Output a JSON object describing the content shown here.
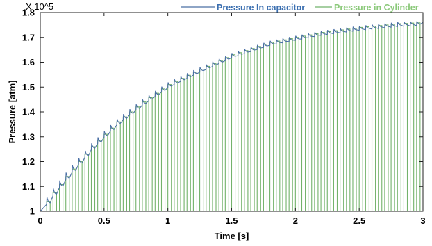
{
  "chart_data": {
    "type": "line",
    "title": "",
    "xlabel": "Time [s]",
    "ylabel": "Pressure [atm]",
    "y_multiplier": "X 10^5",
    "xlim": [
      0,
      3
    ],
    "ylim": [
      1,
      1.8
    ],
    "x_ticks": [
      0,
      0.5,
      1,
      1.5,
      2,
      2.5,
      3
    ],
    "x_tick_labels": [
      "0",
      "0.5",
      "1",
      "1.5",
      "2",
      "2.5",
      "3"
    ],
    "y_ticks": [
      1,
      1.1,
      1.2,
      1.3,
      1.4,
      1.5,
      1.6,
      1.7,
      1.8
    ],
    "y_tick_labels": [
      "1",
      "1.1",
      "1.2",
      "1.3",
      "1.4",
      "1.5",
      "1.6",
      "1.7",
      "1.8"
    ],
    "grid": false,
    "legend_position": "top-right",
    "series": [
      {
        "name": "Pressure In capacitor",
        "color": "#4a6fa5",
        "style": "sawtooth envelope",
        "x": [
          0.05,
          0.1,
          0.2,
          0.3,
          0.4,
          0.5,
          0.6,
          0.8,
          1.0,
          1.2,
          1.5,
          1.8,
          2.0,
          2.2,
          2.5,
          2.8,
          3.0
        ],
        "y": [
          1.04,
          1.075,
          1.14,
          1.2,
          1.26,
          1.31,
          1.36,
          1.44,
          1.51,
          1.56,
          1.63,
          1.68,
          1.7,
          1.72,
          1.74,
          1.755,
          1.76
        ]
      },
      {
        "name": "Pressure in Cylinder",
        "color": "#72b26a",
        "style": "pulse train",
        "pulse_period_s": 0.05,
        "pulse_baseline": 1.0,
        "x": [
          0.05,
          0.1,
          0.2,
          0.3,
          0.4,
          0.5,
          0.6,
          0.8,
          1.0,
          1.2,
          1.5,
          1.8,
          2.0,
          2.2,
          2.5,
          2.8,
          3.0
        ],
        "y": [
          1.04,
          1.075,
          1.14,
          1.2,
          1.26,
          1.31,
          1.36,
          1.44,
          1.51,
          1.56,
          1.63,
          1.68,
          1.7,
          1.72,
          1.74,
          1.755,
          1.76
        ]
      }
    ]
  }
}
